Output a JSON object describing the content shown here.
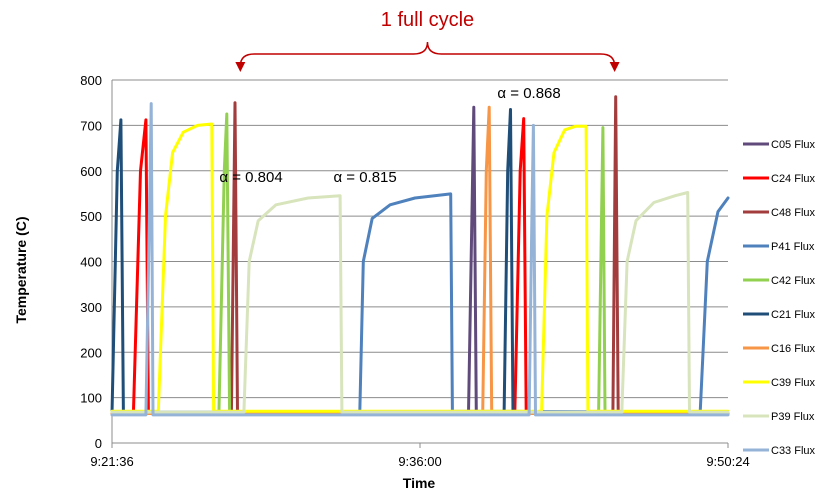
{
  "chart_data": {
    "type": "line",
    "ylabel": "Temperature (C)",
    "xlabel": "Time",
    "ylim": [
      0,
      800
    ],
    "yticks": [
      "0",
      "100",
      "200",
      "300",
      "400",
      "500",
      "600",
      "700",
      "800"
    ],
    "xlim": [
      0,
      1728
    ],
    "xtick_labels": [
      "9:21:36",
      "9:36:00",
      "9:50:24"
    ],
    "grid": "horizontal",
    "legend_position": "right",
    "cycle_label": "1 full cycle",
    "cycle_color": "#c00000",
    "cycle_range": [
      360,
      1410
    ],
    "annotations": [
      {
        "text": "α = 0.804",
        "x": 390,
        "y": 575
      },
      {
        "text": "α = 0.815",
        "x": 710,
        "y": 575
      },
      {
        "text": "α = 0.868",
        "x": 1170,
        "y": 760
      }
    ],
    "series": [
      {
        "name": "C05 Flux",
        "color": "#604a7b",
        "points": [
          [
            0,
            65
          ],
          [
            1000,
            65
          ],
          [
            1015,
            740
          ],
          [
            1022,
            65
          ],
          [
            1728,
            65
          ]
        ]
      },
      {
        "name": "C24 Flux",
        "color": "#ff0000",
        "points": [
          [
            0,
            65
          ],
          [
            60,
            65
          ],
          [
            80,
            600
          ],
          [
            95,
            712
          ],
          [
            102,
            65
          ],
          [
            1130,
            65
          ],
          [
            1145,
            600
          ],
          [
            1155,
            715
          ],
          [
            1162,
            65
          ],
          [
            1728,
            65
          ]
        ]
      },
      {
        "name": "C48 Flux",
        "color": "#a33d3d",
        "points": [
          [
            0,
            65
          ],
          [
            335,
            65
          ],
          [
            345,
            750
          ],
          [
            352,
            65
          ],
          [
            1405,
            65
          ],
          [
            1413,
            763
          ],
          [
            1420,
            65
          ],
          [
            1728,
            65
          ]
        ]
      },
      {
        "name": "P41 Flux",
        "color": "#4f81bd",
        "points": [
          [
            0,
            68
          ],
          [
            695,
            68
          ],
          [
            705,
            400
          ],
          [
            730,
            495
          ],
          [
            780,
            525
          ],
          [
            850,
            540
          ],
          [
            950,
            549
          ],
          [
            955,
            70
          ],
          [
            1650,
            68
          ],
          [
            1670,
            400
          ],
          [
            1700,
            510
          ],
          [
            1728,
            540
          ]
        ]
      },
      {
        "name": "C42 Flux",
        "color": "#92d050",
        "points": [
          [
            0,
            65
          ],
          [
            300,
            65
          ],
          [
            315,
            600
          ],
          [
            322,
            725
          ],
          [
            330,
            65
          ],
          [
            1365,
            65
          ],
          [
            1377,
            695
          ],
          [
            1383,
            65
          ],
          [
            1728,
            65
          ]
        ]
      },
      {
        "name": "C21 Flux",
        "color": "#1f4e79",
        "points": [
          [
            0,
            65
          ],
          [
            15,
            600
          ],
          [
            25,
            712
          ],
          [
            32,
            65
          ],
          [
            1100,
            65
          ],
          [
            1110,
            600
          ],
          [
            1118,
            735
          ],
          [
            1125,
            65
          ],
          [
            1728,
            65
          ]
        ]
      },
      {
        "name": "C16 Flux",
        "color": "#f79646",
        "points": [
          [
            0,
            65
          ],
          [
            1040,
            65
          ],
          [
            1050,
            600
          ],
          [
            1058,
            740
          ],
          [
            1065,
            65
          ],
          [
            1728,
            65
          ]
        ]
      },
      {
        "name": "C39 Flux",
        "color": "#ffff00",
        "points": [
          [
            0,
            70
          ],
          [
            130,
            70
          ],
          [
            150,
            500
          ],
          [
            170,
            640
          ],
          [
            200,
            685
          ],
          [
            240,
            700
          ],
          [
            280,
            703
          ],
          [
            285,
            70
          ],
          [
            1205,
            70
          ],
          [
            1220,
            500
          ],
          [
            1240,
            640
          ],
          [
            1270,
            690
          ],
          [
            1300,
            698
          ],
          [
            1330,
            698
          ],
          [
            1335,
            70
          ],
          [
            1728,
            70
          ]
        ]
      },
      {
        "name": "P39 Flux",
        "color": "#d7e4bc",
        "points": [
          [
            0,
            68
          ],
          [
            370,
            68
          ],
          [
            385,
            400
          ],
          [
            410,
            490
          ],
          [
            460,
            525
          ],
          [
            550,
            540
          ],
          [
            640,
            545
          ],
          [
            645,
            68
          ],
          [
            1430,
            68
          ],
          [
            1445,
            400
          ],
          [
            1470,
            490
          ],
          [
            1520,
            530
          ],
          [
            1580,
            545
          ],
          [
            1615,
            552
          ],
          [
            1620,
            68
          ],
          [
            1728,
            68
          ]
        ]
      },
      {
        "name": "C33 Flux",
        "color": "#95b3d7",
        "points": [
          [
            0,
            62
          ],
          [
            95,
            62
          ],
          [
            105,
            500
          ],
          [
            110,
            748
          ],
          [
            115,
            62
          ],
          [
            1170,
            62
          ],
          [
            1178,
            500
          ],
          [
            1182,
            700
          ],
          [
            1188,
            62
          ],
          [
            1728,
            62
          ]
        ]
      }
    ]
  }
}
